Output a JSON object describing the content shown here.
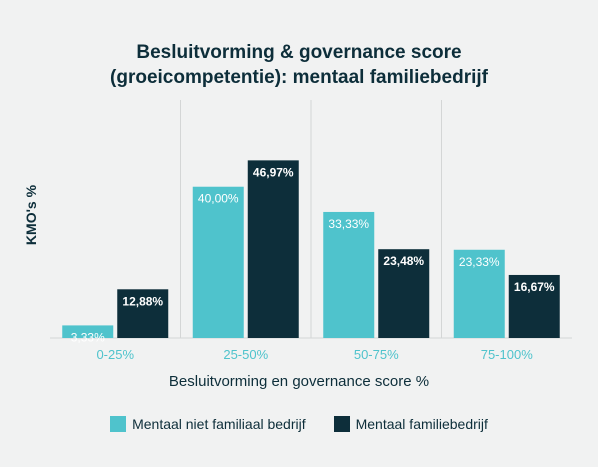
{
  "chart_data": {
    "type": "bar",
    "title_lines": [
      "Besluitvorming & governance score",
      "(groeicompetentie): mentaal familiebedrijf"
    ],
    "xlabel": "Besluitvorming en governance score %",
    "ylabel": "KMO's %",
    "categories": [
      "0-25%",
      "25-50%",
      "50-75%",
      "75-100%"
    ],
    "ylim": [
      0,
      55
    ],
    "series": [
      {
        "name": "Mentaal niet familiaal bedrijf",
        "color": "#4fc3cc",
        "values": [
          3.33,
          40.0,
          33.33,
          23.33
        ],
        "labels": [
          "3,33%",
          "40,00%",
          "33,33%",
          "23,33%"
        ]
      },
      {
        "name": "Mentaal familiebedrijf",
        "color": "#0d2e3a",
        "values": [
          12.88,
          46.97,
          23.48,
          16.67
        ],
        "labels": [
          "12,88%",
          "46,97%",
          "23,48%",
          "16,67%"
        ]
      }
    ],
    "grid": "vertical separators",
    "legend_position": "bottom"
  }
}
